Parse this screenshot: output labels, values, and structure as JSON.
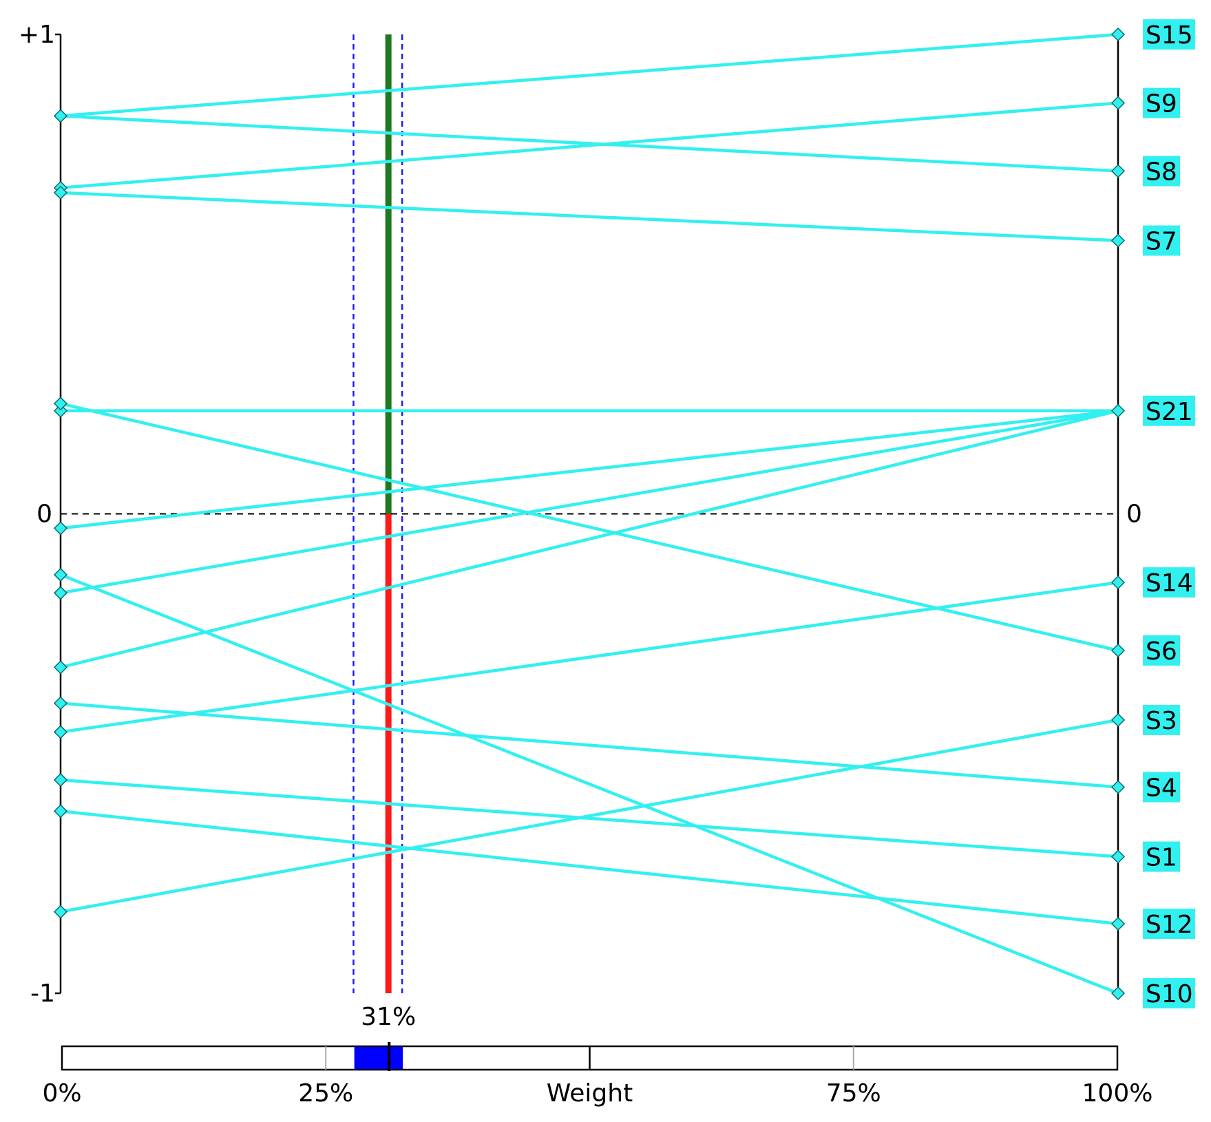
{
  "chart_data": {
    "type": "line",
    "x_axis": {
      "label": "Weight",
      "ticks": [
        "0%",
        "25%",
        "Weight",
        "75%",
        "100%"
      ],
      "range": [
        0,
        100
      ],
      "unit": "%"
    },
    "y_axis": {
      "range": [
        -1,
        1
      ],
      "left_ticks": [
        "+1",
        "0",
        "-1"
      ],
      "right_tick": "0"
    },
    "current_weight": {
      "value": 31,
      "label": "31%",
      "interval": [
        27.7,
        32.3
      ]
    },
    "zero_line_style": "dashed",
    "colors": {
      "lines": "#33f0f0",
      "label_bg": "#33f0f0",
      "weight_positive": "#1e7a1e",
      "weight_negative": "#ff1a1a",
      "interval_lines": "#1a1aff",
      "slider_fill": "#0000ff"
    },
    "series": [
      {
        "name": "S15",
        "y0": 0.83,
        "y1": 1.0
      },
      {
        "name": "S9",
        "y0": 0.68,
        "y1": 0.857
      },
      {
        "name": "S8",
        "y0": 0.83,
        "y1": 0.715
      },
      {
        "name": "S7",
        "y0": 0.67,
        "y1": 0.57
      },
      {
        "name": "S21",
        "y0": 0.215,
        "y1": 0.215
      },
      {
        "name": "S21",
        "y0": -0.03,
        "y1": 0.215
      },
      {
        "name": "S21",
        "y0": -0.165,
        "y1": 0.215
      },
      {
        "name": "S21",
        "y0": -0.32,
        "y1": 0.215
      },
      {
        "name": "S14",
        "y0": -0.455,
        "y1": -0.143
      },
      {
        "name": "S6",
        "y0": 0.23,
        "y1": -0.285
      },
      {
        "name": "S3",
        "y0": -0.83,
        "y1": -0.43
      },
      {
        "name": "S4",
        "y0": -0.395,
        "y1": -0.57
      },
      {
        "name": "S1",
        "y0": -0.555,
        "y1": -0.715
      },
      {
        "name": "S12",
        "y0": -0.62,
        "y1": -0.855
      },
      {
        "name": "S10",
        "y0": -0.127,
        "y1": -1.0
      }
    ],
    "right_labels": [
      "S15",
      "S9",
      "S8",
      "S7",
      "S21",
      "S14",
      "S6",
      "S3",
      "S4",
      "S1",
      "S12",
      "S10"
    ],
    "right_label_values": [
      1.0,
      0.857,
      0.715,
      0.57,
      0.215,
      -0.143,
      -0.285,
      -0.43,
      -0.57,
      -0.715,
      -0.855,
      -1.0
    ]
  }
}
